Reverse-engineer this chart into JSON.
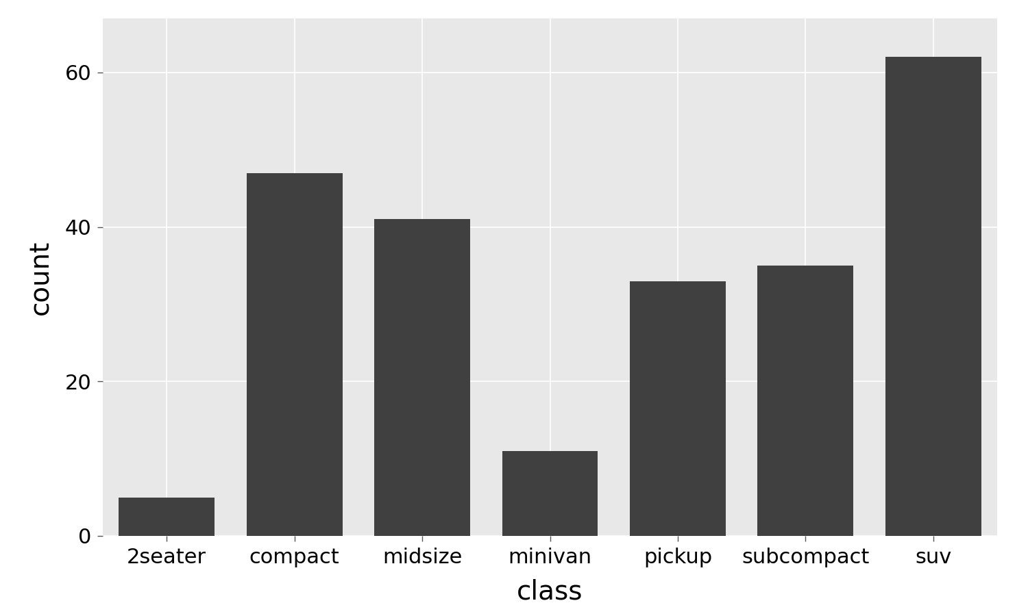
{
  "categories": [
    "2seater",
    "compact",
    "midsize",
    "minivan",
    "pickup",
    "subcompact",
    "suv"
  ],
  "values": [
    5,
    47,
    41,
    11,
    33,
    35,
    62
  ],
  "bar_color": "#404040",
  "panel_background_color": "#e8e8e8",
  "figure_background_color": "#e8e8e8",
  "outer_background_color": "#ffffff",
  "grid_color": "#ffffff",
  "xlabel": "class",
  "ylabel": "count",
  "xlabel_fontsize": 28,
  "ylabel_fontsize": 28,
  "tick_label_fontsize": 22,
  "ylim": [
    0,
    67
  ],
  "yticks": [
    0,
    20,
    40,
    60
  ],
  "ytick_labels": [
    "0",
    "20",
    "40",
    "60"
  ],
  "bar_width": 0.75
}
